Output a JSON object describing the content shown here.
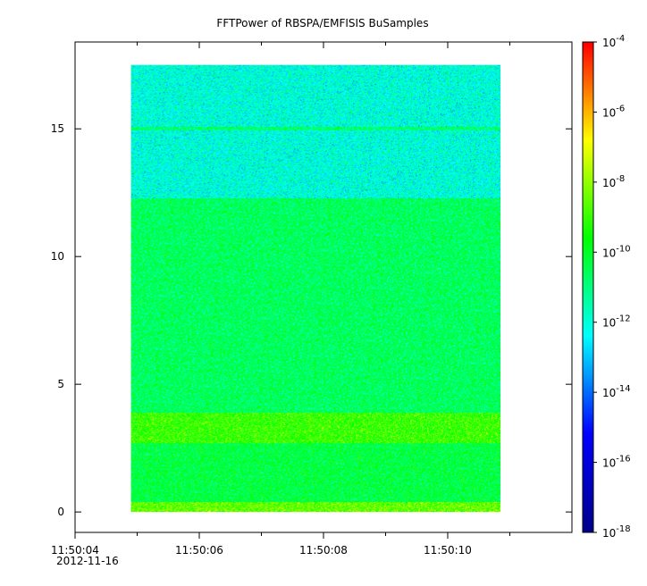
{
  "chart_data": {
    "type": "heatmap",
    "title": "FFTPower of RBSPA/EMFISIS  BuSamples",
    "xlabel": "",
    "ylabel": "",
    "x_axis": {
      "range_seconds": [
        "11:50:04",
        "11:50:12"
      ],
      "major_tick_labels": [
        "11:50:04",
        "11:50:06",
        "11:50:08",
        "11:50:10"
      ],
      "date_label": "2012-11-16",
      "minor_ticks_seconds": [
        "11:50:05",
        "11:50:07",
        "11:50:09",
        "11:50:11"
      ]
    },
    "y_axis": {
      "range": [
        -0.8,
        18.4
      ],
      "major_ticks": [
        0,
        5,
        10,
        15
      ],
      "tick_labels": [
        "0",
        "5",
        "10",
        "15"
      ]
    },
    "data_extent": {
      "x_start": "11:50:04.9",
      "x_end": "11:50:10.85",
      "y_min": 0,
      "y_max": 17.5
    },
    "colorbar": {
      "scale": "log",
      "range": [
        "1e-18",
        "1e-4"
      ],
      "tick_labels": [
        {
          "base": "10",
          "exp": "-4"
        },
        {
          "base": "10",
          "exp": "-6"
        },
        {
          "base": "10",
          "exp": "-8"
        },
        {
          "base": "10",
          "exp": "-10"
        },
        {
          "base": "10",
          "exp": "-12"
        },
        {
          "base": "10",
          "exp": "-14"
        },
        {
          "base": "10",
          "exp": "-16"
        },
        {
          "base": "10",
          "exp": "-18"
        }
      ],
      "colormap": [
        "#00008b",
        "#0000ff",
        "#00ffff",
        "#00ff00",
        "#ffff00",
        "#ff0000"
      ]
    },
    "bands": [
      {
        "y_range": [
          0,
          0.4
        ],
        "log10_power": -8.5,
        "desc": "bright yellow/orange band near 0"
      },
      {
        "y_range": [
          0.4,
          2.7
        ],
        "log10_power": -10.3
      },
      {
        "y_range": [
          2.7,
          3.9
        ],
        "log10_power": -9.0
      },
      {
        "y_range": [
          3.9,
          12.3
        ],
        "log10_power": -10.6
      },
      {
        "y_range": [
          12.3,
          17.5
        ],
        "log10_power": -12.0
      },
      {
        "y_range": [
          14.95,
          15.1
        ],
        "log10_power": -10.8,
        "desc": "narrow line near 15"
      }
    ],
    "grid": false,
    "legend": "none"
  }
}
